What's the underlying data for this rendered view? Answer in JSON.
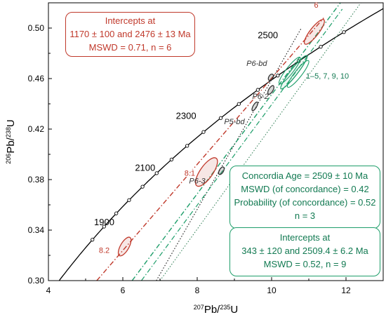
{
  "chart_data": {
    "type": "scatter",
    "xlabel": "207Pb/235U",
    "ylabel": "206Pb/238U",
    "xlim": [
      4,
      13
    ],
    "ylim": [
      0.3,
      0.52
    ],
    "xticks": [
      4,
      6,
      8,
      10,
      12
    ],
    "yticks": [
      0.3,
      0.34,
      0.38,
      0.42,
      0.46,
      0.5
    ],
    "concordia_age_labels": [
      {
        "age": "1900",
        "x": 5.5,
        "y": 0.344
      },
      {
        "age": "2100",
        "x": 6.6,
        "y": 0.387
      },
      {
        "age": "2300",
        "x": 7.7,
        "y": 0.428
      },
      {
        "age": "2500",
        "x": 9.9,
        "y": 0.492
      }
    ],
    "concordia_ages_Ma": [
      1850,
      1900,
      1950,
      2000,
      2050,
      2100,
      2150,
      2200,
      2250,
      2300,
      2350,
      2400,
      2450,
      2500,
      2550,
      2600
    ],
    "ellipses": [
      {
        "label": "8.2",
        "color": "#c0392b",
        "x": 6.05,
        "y": 0.327,
        "label_x": 5.5,
        "label_y": 0.322
      },
      {
        "label": "8.1",
        "color": "#c0392b",
        "x": 8.25,
        "y": 0.386,
        "label_x": 7.8,
        "label_y": 0.383
      },
      {
        "label": "P6-3",
        "color": "#333333",
        "x": 8.65,
        "y": 0.387,
        "label_x": 8.0,
        "label_y": 0.377
      },
      {
        "label": "P5-bd",
        "color": "#333333",
        "x": 9.55,
        "y": 0.438,
        "label_x": 9.0,
        "label_y": 0.424
      },
      {
        "label": "P6-2",
        "color": "#333333",
        "x": 9.98,
        "y": 0.451,
        "label_x": 9.7,
        "label_y": 0.444
      },
      {
        "label": "P6-bd",
        "color": "#333333",
        "x": 9.98,
        "y": 0.461,
        "label_x": 9.6,
        "label_y": 0.47
      },
      {
        "label": "6",
        "color": "#c0392b",
        "x": 11.15,
        "y": 0.497,
        "label_x": 11.2,
        "label_y": 0.516
      },
      {
        "label": "1–5, 7, 9, 10",
        "color": "#1e9e6a",
        "x": 10.6,
        "y": 0.465,
        "label_x": 11.5,
        "label_y": 0.46
      }
    ],
    "discordia_lines": [
      {
        "name": "Intercepts 1170 ± 100 and 2476 ± 13 Ma",
        "color": "#c0392b",
        "x": [
          5.3,
          11.4
        ],
        "y": [
          0.3,
          0.508
        ]
      },
      {
        "name": "Intercepts 343 ± 120 and 2509.4 ± 6.2 Ma",
        "color": "#1e9e6a",
        "x": [
          6.25,
          11.85
        ],
        "y": [
          0.3,
          0.52
        ]
      }
    ]
  },
  "annotations": {
    "red_box": {
      "line1": "Intercepts at",
      "line2": "1170 ± 100 and 2476 ± 13  Ma",
      "line3": "MSWD = 0.71, n = 6"
    },
    "concordia_box": {
      "line1": "Concordia Age = 2509 ± 10 Ma",
      "line2": "MSWD (of concordance) = 0.42",
      "line3": "Probability (of concordance) = 0.52",
      "line4": "n = 3"
    },
    "green_box": {
      "line1": "Intercepts at",
      "line2": "343 ± 120 and 2509.4 ± 6.2 Ma",
      "line3": "MSWD = 0.52, n = 9"
    }
  },
  "colors": {
    "red": "#c0392b",
    "green": "#1e9e6a",
    "green_text": "#127a52",
    "black": "#000000"
  }
}
